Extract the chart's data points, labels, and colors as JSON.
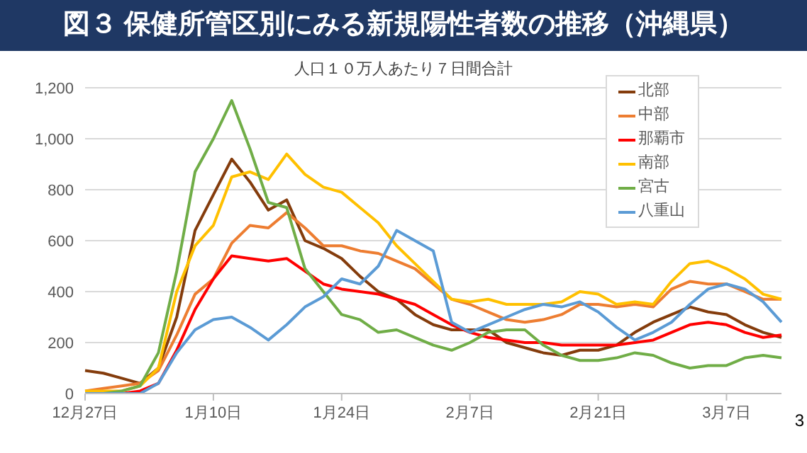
{
  "chart_data": {
    "type": "line",
    "title": "図３ 保健所管区別にみる新規陽性者数の推移（沖縄県）",
    "subtitle": "人口１０万人あたり７日間合計",
    "annotations": [
      "3"
    ],
    "categories": [
      "12月27日",
      null,
      null,
      null,
      null,
      null,
      null,
      "1月10日",
      null,
      null,
      null,
      null,
      null,
      null,
      "1月24日",
      null,
      null,
      null,
      null,
      null,
      null,
      "2月7日",
      null,
      null,
      null,
      null,
      null,
      null,
      "2月21日",
      null,
      null,
      null,
      null,
      null,
      null,
      "3月7日",
      null,
      null,
      null
    ],
    "series": [
      {
        "name": "北部",
        "color": "#843c0c",
        "values": [
          90,
          80,
          60,
          40,
          100,
          300,
          640,
          780,
          920,
          830,
          720,
          760,
          600,
          570,
          530,
          460,
          400,
          370,
          310,
          270,
          250,
          250,
          250,
          200,
          180,
          160,
          150,
          170,
          170,
          190,
          240,
          280,
          310,
          340,
          320,
          310,
          270,
          240,
          220
        ]
      },
      {
        "name": "中部",
        "color": "#ed7d31",
        "values": [
          10,
          20,
          30,
          40,
          90,
          230,
          390,
          450,
          590,
          660,
          650,
          710,
          650,
          580,
          580,
          560,
          550,
          520,
          490,
          430,
          370,
          350,
          320,
          290,
          280,
          290,
          310,
          350,
          350,
          340,
          350,
          340,
          410,
          440,
          430,
          430,
          400,
          370,
          370
        ]
      },
      {
        "name": "那覇市",
        "color": "#ff0000",
        "values": [
          0,
          0,
          0,
          10,
          40,
          170,
          330,
          450,
          540,
          530,
          520,
          530,
          480,
          430,
          410,
          400,
          390,
          370,
          350,
          310,
          270,
          240,
          220,
          210,
          200,
          200,
          190,
          190,
          190,
          190,
          200,
          210,
          240,
          270,
          280,
          270,
          240,
          220,
          230
        ]
      },
      {
        "name": "南部",
        "color": "#ffc000",
        "values": [
          10,
          10,
          10,
          30,
          100,
          400,
          580,
          660,
          850,
          870,
          840,
          940,
          860,
          810,
          790,
          730,
          670,
          580,
          510,
          440,
          370,
          360,
          370,
          350,
          350,
          350,
          360,
          400,
          390,
          350,
          360,
          350,
          440,
          510,
          520,
          490,
          450,
          390,
          370
        ]
      },
      {
        "name": "宮古",
        "color": "#70ad47",
        "values": [
          0,
          0,
          10,
          30,
          160,
          480,
          870,
          1000,
          1150,
          960,
          750,
          730,
          490,
          400,
          310,
          290,
          240,
          250,
          220,
          190,
          170,
          200,
          240,
          250,
          250,
          190,
          150,
          130,
          130,
          140,
          160,
          150,
          120,
          100,
          110,
          110,
          140,
          150,
          140
        ]
      },
      {
        "name": "八重山",
        "color": "#5b9bd5",
        "values": [
          0,
          0,
          0,
          0,
          40,
          160,
          250,
          290,
          300,
          260,
          210,
          270,
          340,
          380,
          450,
          430,
          500,
          640,
          600,
          560,
          280,
          240,
          270,
          300,
          330,
          350,
          340,
          360,
          320,
          260,
          210,
          240,
          280,
          350,
          410,
          430,
          410,
          360,
          280
        ]
      }
    ],
    "ylim": [
      0,
      1200
    ],
    "yticks": [
      0,
      200,
      400,
      600,
      800,
      {
        "value": 1000,
        "label": "1,000"
      },
      {
        "value": 1200,
        "label": "1,200"
      }
    ],
    "grid": "y",
    "legend": "top right",
    "marker": "none",
    "line_style": "solid"
  }
}
